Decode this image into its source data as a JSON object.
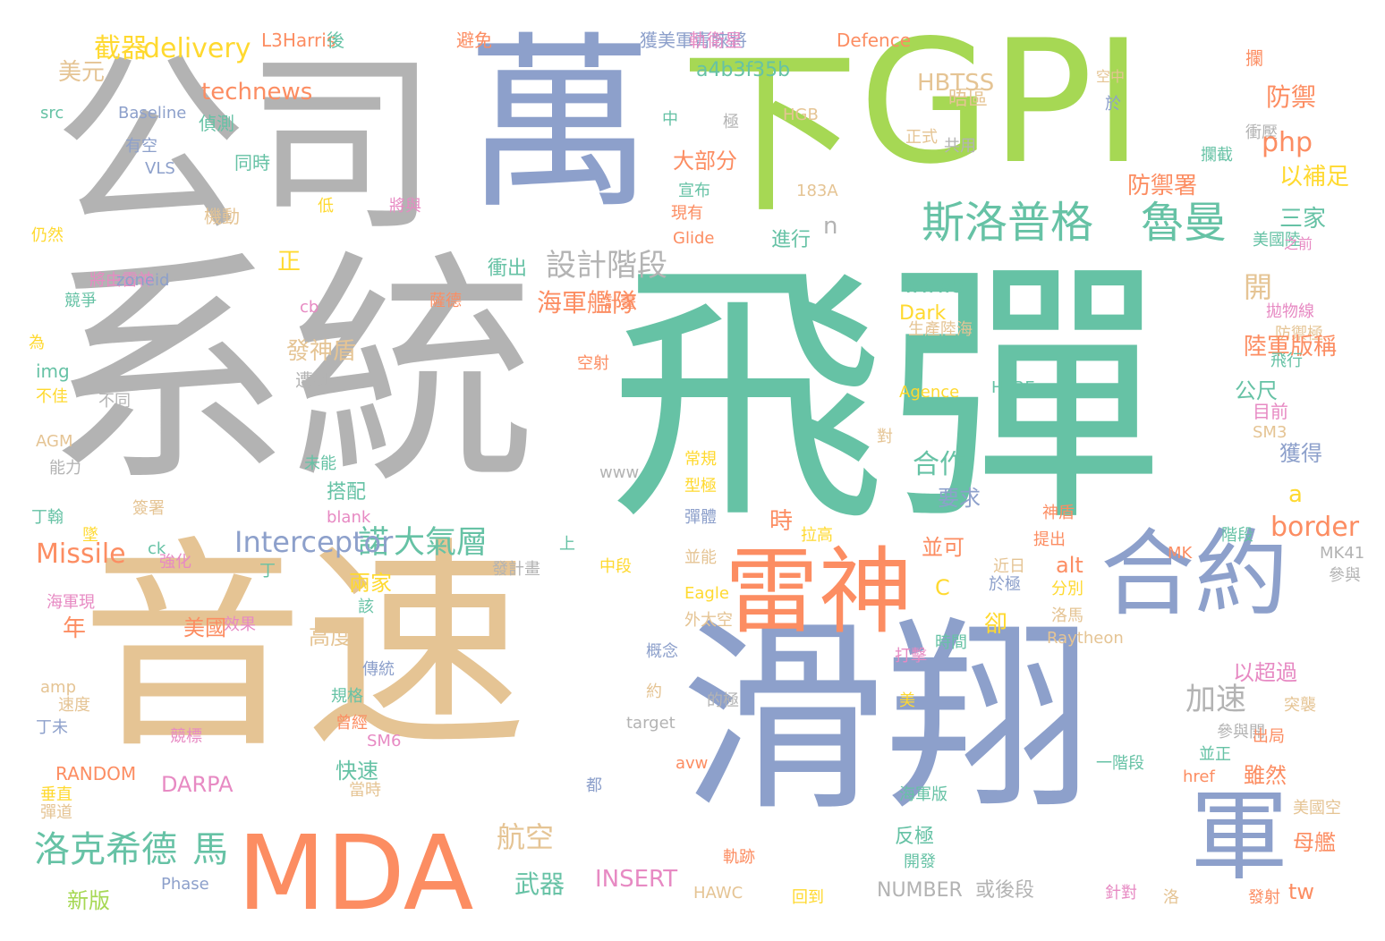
{
  "palette": {
    "gray": "#b3b3b3",
    "teal": "#66c2a5",
    "orange": "#fc8d62",
    "blue": "#8da0cb",
    "pink": "#e78ac3",
    "green": "#a6d854",
    "yellow": "#ffd92f",
    "tan": "#e5c494"
  },
  "words": [
    "飛彈",
    "系統",
    "公司",
    "萬",
    "下",
    "GPI",
    "音速",
    "滑翔",
    "MDA",
    "雷神",
    "合約",
    "軍",
    "斯洛普格",
    "魯曼",
    "洛克希德",
    "馬",
    "諾",
    "大氣層",
    "Interceptor",
    "航空",
    "L3Harris",
    "後",
    "避免",
    "獲美軍青睞將",
    "軌衛星",
    "Defence",
    "攔",
    "截器",
    "delivery",
    "美元",
    "technews",
    "a4b3f35b",
    "HBTSS",
    "晤區",
    "空中",
    "src",
    "Baseline",
    "偵測",
    "有空",
    "VLS",
    "同時",
    "中",
    "極",
    "HGB",
    "於",
    "正式",
    "共用",
    "衝壓",
    "攔截",
    "防禦",
    "php",
    "大部分",
    "宣布",
    "以補足",
    "183A",
    "機動",
    "低",
    "將與",
    "現有",
    "Glide",
    "三家",
    "美國陸",
    "之前",
    "仍然",
    "防禦署",
    "n",
    "進行",
    "設計階段",
    "正",
    "將由雷神",
    "zoneid",
    "薩德",
    "海軍艦隊",
    "計畫",
    "開",
    "競爭",
    "cb",
    "www5",
    "Dark",
    "生產陸海",
    "拋物線",
    "防禦極",
    "為",
    "陸軍版稱",
    "飛行",
    "發神盾",
    "img",
    "遭到",
    "空射",
    "HERE",
    "公尺",
    "不佳",
    "不同",
    "Agence",
    "目前",
    "AGM",
    "對",
    "SM3",
    "能力",
    "未能",
    "常規",
    "www",
    "獲得",
    "合作",
    "要求",
    "a",
    "搭配",
    "型極",
    "丁翰",
    "簽署",
    "blank",
    "神盾",
    "彈體",
    "border",
    "墜",
    "時",
    "拉高",
    "提出",
    "階段",
    "Missile",
    "ck",
    "上",
    "並可",
    "MK",
    "強化",
    "發計畫",
    "中段",
    "alt",
    "MK41",
    "丁",
    "兩家",
    "並能",
    "近日",
    "C",
    "參與",
    "海軍現",
    "該",
    "效果",
    "Eagle",
    "於極",
    "分別",
    "年",
    "美國",
    "卻",
    "時間",
    "洛馬",
    "高度",
    "外太空",
    "Raytheon",
    "以超過",
    "傳統",
    "打擊",
    "概念",
    "amp",
    "加速",
    "突襲",
    "約",
    "的極",
    "速度",
    "規格",
    "美",
    "target",
    "丁未",
    "參與開",
    "出局",
    "曾經",
    "SM6",
    "競標",
    "並正",
    "avw",
    "一階段",
    "雖然",
    "快速",
    "href",
    "RANDOM",
    "DARPA",
    "都",
    "當時",
    "垂直",
    "海軍版",
    "美國空",
    "彈道",
    "反極",
    "母艦",
    "軌跡",
    "開發",
    "武器",
    "INSERT",
    "新版",
    "Phase",
    "NUMBER",
    "或後段",
    "HAWC",
    "回到",
    "洛",
    "針對",
    "發射",
    "tw",
    "衝出"
  ]
}
